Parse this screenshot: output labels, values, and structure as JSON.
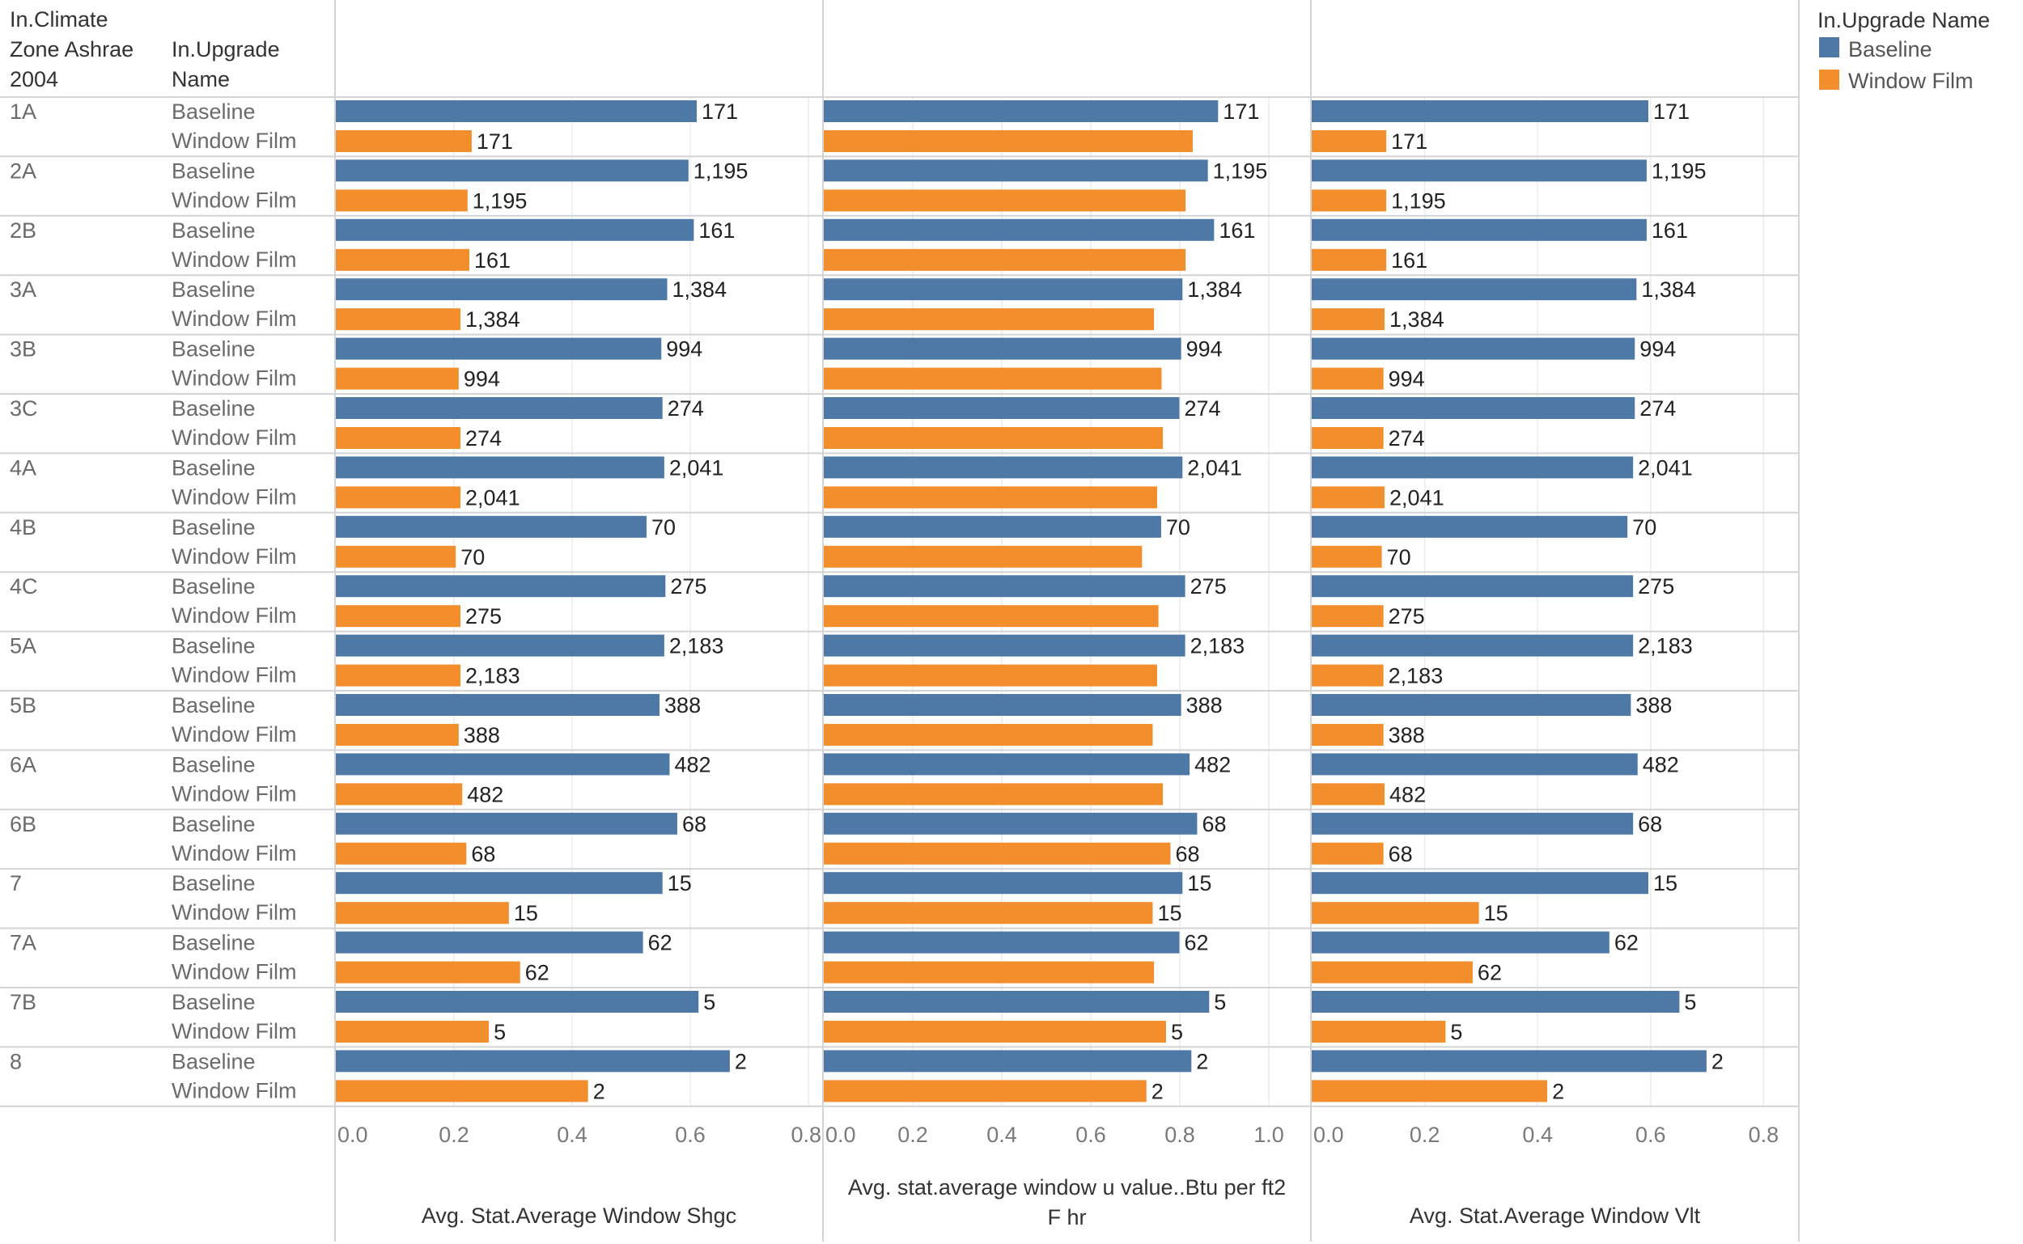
{
  "chart_data": {
    "type": "bar",
    "orientation": "horizontal",
    "row_headers": {
      "zone_header": [
        "In.Climate",
        "Zone Ashrae",
        "2004"
      ],
      "upgrade_header": [
        "In.Upgrade",
        "Name"
      ]
    },
    "categories": [
      "1A",
      "2A",
      "2B",
      "3A",
      "3B",
      "3C",
      "4A",
      "4B",
      "4C",
      "5A",
      "5B",
      "6A",
      "6B",
      "7",
      "7A",
      "7B",
      "8"
    ],
    "sub_categories": [
      "Baseline",
      "Window Film"
    ],
    "bar_labels": {
      "Baseline": [
        "171",
        "1,195",
        "161",
        "1,384",
        "994",
        "274",
        "2,041",
        "70",
        "275",
        "2,183",
        "388",
        "482",
        "68",
        "15",
        "62",
        "5",
        "2"
      ],
      "Window Film": [
        "171",
        "1,195",
        "161",
        "1,384",
        "994",
        "274",
        "2,041",
        "70",
        "275",
        "2,183",
        "388",
        "482",
        "68",
        "15",
        "62",
        "5",
        "2"
      ]
    },
    "legend": {
      "title": "In.Upgrade Name",
      "position": "top-right",
      "items": [
        {
          "name": "Baseline",
          "color": "#4e79a7"
        },
        {
          "name": "Window Film",
          "color": "#f28e2b"
        }
      ]
    },
    "grid": true,
    "panels": [
      {
        "title": "Avg. Stat.Average Window Shgc",
        "title_lines": [
          "Avg. Stat.Average Window Shgc"
        ],
        "xlim": [
          0,
          0.8
        ],
        "ticks": [
          "0.0",
          "0.2",
          "0.4",
          "0.6",
          "0.8"
        ],
        "tick_values": [
          0,
          0.2,
          0.4,
          0.6,
          0.8
        ],
        "series": [
          {
            "name": "Baseline",
            "values": [
              0.611,
              0.597,
              0.606,
              0.561,
              0.551,
              0.553,
              0.556,
              0.526,
              0.558,
              0.556,
              0.548,
              0.565,
              0.578,
              0.553,
              0.52,
              0.614,
              0.667
            ],
            "labels_shown": [
              true,
              true,
              true,
              true,
              true,
              true,
              true,
              true,
              true,
              true,
              true,
              true,
              true,
              true,
              true,
              true,
              true
            ]
          },
          {
            "name": "Window Film",
            "values": [
              0.23,
              0.223,
              0.226,
              0.211,
              0.208,
              0.211,
              0.211,
              0.203,
              0.211,
              0.211,
              0.208,
              0.214,
              0.221,
              0.293,
              0.312,
              0.259,
              0.427
            ],
            "labels_shown": [
              true,
              true,
              true,
              true,
              true,
              true,
              true,
              true,
              true,
              true,
              true,
              true,
              true,
              true,
              true,
              true,
              true
            ]
          }
        ]
      },
      {
        "title": "Avg. stat.average window u value..Btu per ft2 F hr",
        "title_lines": [
          "Avg. stat.average window u value..Btu per ft2",
          "F hr"
        ],
        "xlim": [
          0,
          1.0
        ],
        "ticks": [
          "0.0",
          "0.2",
          "0.4",
          "0.6",
          "0.8",
          "1.0"
        ],
        "tick_values": [
          0,
          0.2,
          0.4,
          0.6,
          0.8,
          1.0
        ],
        "series": [
          {
            "name": "Baseline",
            "values": [
              0.886,
              0.863,
              0.877,
              0.806,
              0.803,
              0.799,
              0.806,
              0.758,
              0.812,
              0.812,
              0.803,
              0.822,
              0.839,
              0.806,
              0.799,
              0.866,
              0.826
            ],
            "labels_shown": [
              true,
              true,
              true,
              true,
              true,
              true,
              true,
              true,
              true,
              true,
              true,
              true,
              true,
              true,
              true,
              true,
              true
            ]
          },
          {
            "name": "Window Film",
            "values": [
              0.829,
              0.813,
              0.813,
              0.742,
              0.759,
              0.762,
              0.749,
              0.715,
              0.752,
              0.749,
              0.739,
              0.762,
              0.779,
              0.739,
              0.742,
              0.769,
              0.725
            ],
            "labels_shown": [
              false,
              false,
              false,
              false,
              false,
              false,
              false,
              false,
              false,
              false,
              false,
              false,
              true,
              true,
              false,
              true,
              true
            ]
          }
        ]
      },
      {
        "title": "Avg. Stat.Average Window Vlt",
        "title_lines": [
          "Avg. Stat.Average Window Vlt"
        ],
        "xlim": [
          0,
          0.8
        ],
        "ticks": [
          "0.0",
          "0.2",
          "0.4",
          "0.6",
          "0.8"
        ],
        "tick_values": [
          0,
          0.2,
          0.4,
          0.6,
          0.8
        ],
        "series": [
          {
            "name": "Baseline",
            "values": [
              0.596,
              0.593,
              0.593,
              0.575,
              0.572,
              0.572,
              0.569,
              0.559,
              0.569,
              0.569,
              0.565,
              0.577,
              0.569,
              0.596,
              0.527,
              0.651,
              0.699
            ],
            "labels_shown": [
              true,
              true,
              true,
              true,
              true,
              true,
              true,
              true,
              true,
              true,
              true,
              true,
              true,
              true,
              true,
              true,
              true
            ]
          },
          {
            "name": "Window Film",
            "values": [
              0.132,
              0.132,
              0.132,
              0.129,
              0.127,
              0.127,
              0.129,
              0.124,
              0.127,
              0.127,
              0.127,
              0.129,
              0.127,
              0.296,
              0.285,
              0.237,
              0.417
            ],
            "labels_shown": [
              true,
              true,
              true,
              true,
              true,
              true,
              true,
              true,
              true,
              true,
              true,
              true,
              true,
              true,
              true,
              true,
              true
            ]
          }
        ]
      }
    ]
  }
}
